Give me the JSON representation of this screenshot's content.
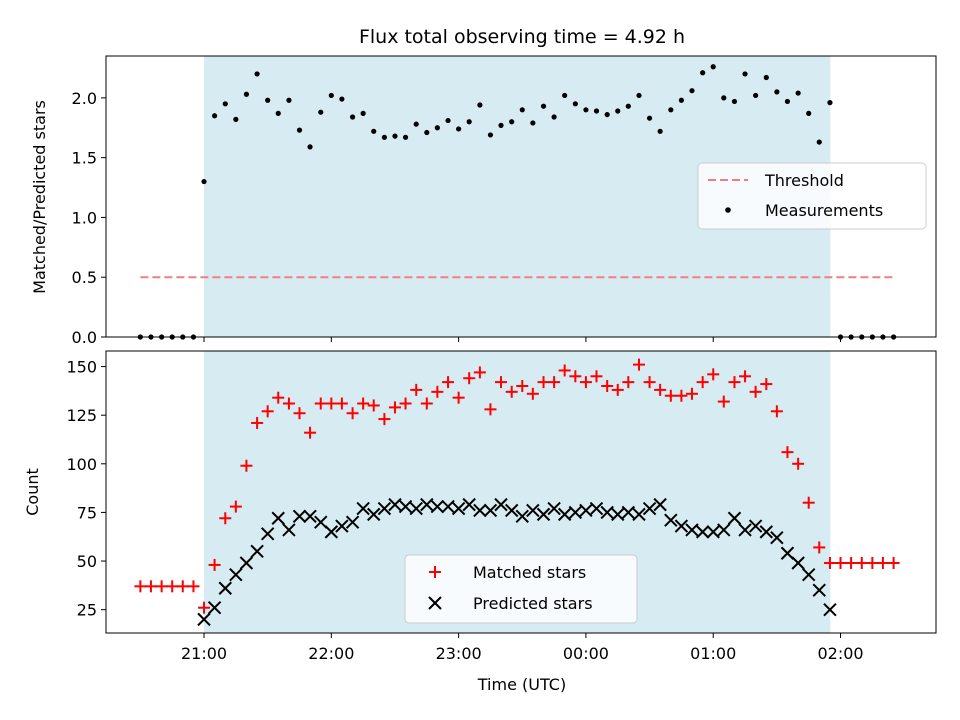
{
  "title": "Flux total observing time = 4.92 h",
  "colors": {
    "shade": "#add8e6",
    "threshold": "#f08080",
    "matched": "#ff0000",
    "predicted": "#000000",
    "measure": "#000000"
  },
  "chart_data": [
    {
      "type": "scatter",
      "ylabel": "Matched/Predicted stars",
      "ylim": [
        0,
        2.35
      ],
      "yticks": [
        "0.0",
        "0.5",
        "1.0",
        "1.5",
        "2.0"
      ],
      "ytick_values": [
        0,
        0.5,
        1.0,
        1.5,
        2.0
      ],
      "x_range_hours": [
        20.23,
        26.75
      ],
      "shaded_interval_hours": [
        21.0,
        25.92
      ],
      "legend": {
        "threshold": "Threshold",
        "measurements": "Measurements",
        "placement": "center-right"
      },
      "threshold": {
        "name": "Threshold",
        "value": 0.5,
        "x": [
          20.5,
          26.42
        ]
      },
      "measurements": {
        "name": "Measurements",
        "x": [
          20.5,
          20.583,
          20.667,
          20.75,
          20.833,
          20.917,
          21.0,
          21.083,
          21.167,
          21.25,
          21.333,
          21.417,
          21.5,
          21.583,
          21.667,
          21.75,
          21.833,
          21.917,
          22.0,
          22.083,
          22.167,
          22.25,
          22.333,
          22.417,
          22.5,
          22.583,
          22.667,
          22.75,
          22.833,
          22.917,
          23.0,
          23.083,
          23.167,
          23.25,
          23.333,
          23.417,
          23.5,
          23.583,
          23.667,
          23.75,
          23.833,
          23.917,
          24.0,
          24.083,
          24.167,
          24.25,
          24.333,
          24.417,
          24.5,
          24.583,
          24.667,
          24.75,
          24.833,
          24.917,
          25.0,
          25.083,
          25.167,
          25.25,
          25.333,
          25.417,
          25.5,
          25.583,
          25.667,
          25.75,
          25.833,
          25.917,
          26.0,
          26.083,
          26.167,
          26.25,
          26.333,
          26.417
        ],
        "y": [
          0,
          0,
          0,
          0,
          0,
          0,
          1.3,
          1.85,
          1.95,
          1.82,
          2.03,
          2.2,
          1.98,
          1.87,
          1.98,
          1.73,
          1.59,
          1.88,
          2.02,
          1.99,
          1.84,
          1.87,
          1.72,
          1.67,
          1.68,
          1.67,
          1.78,
          1.71,
          1.75,
          1.81,
          1.74,
          1.8,
          1.94,
          1.69,
          1.77,
          1.8,
          1.9,
          1.79,
          1.93,
          1.84,
          2.02,
          1.95,
          1.9,
          1.89,
          1.86,
          1.89,
          1.93,
          2.02,
          1.83,
          1.72,
          1.9,
          1.98,
          2.06,
          2.21,
          2.26,
          2.0,
          1.97,
          2.2,
          2.02,
          2.17,
          2.05,
          1.97,
          2.04,
          1.87,
          1.63,
          1.96,
          0,
          0,
          0,
          0,
          0,
          0
        ]
      }
    },
    {
      "type": "scatter",
      "ylabel": "Count",
      "xlabel": "Time (UTC)",
      "ylim": [
        13,
        158
      ],
      "yticks": [
        "25",
        "50",
        "75",
        "100",
        "125",
        "150"
      ],
      "ytick_values": [
        25,
        50,
        75,
        100,
        125,
        150
      ],
      "xticks": [
        "21:00",
        "22:00",
        "23:00",
        "00:00",
        "01:00",
        "02:00"
      ],
      "xtick_values": [
        21,
        22,
        23,
        24,
        25,
        26
      ],
      "x_range_hours": [
        20.23,
        26.75
      ],
      "shaded_interval_hours": [
        21.0,
        25.92
      ],
      "legend": {
        "matched": "Matched stars",
        "predicted": "Predicted stars",
        "placement": "lower-center"
      },
      "matched": {
        "name": "Matched stars",
        "x": [
          20.5,
          20.583,
          20.667,
          20.75,
          20.833,
          20.917,
          21.0,
          21.083,
          21.167,
          21.25,
          21.333,
          21.417,
          21.5,
          21.583,
          21.667,
          21.75,
          21.833,
          21.917,
          22.0,
          22.083,
          22.167,
          22.25,
          22.333,
          22.417,
          22.5,
          22.583,
          22.667,
          22.75,
          22.833,
          22.917,
          23.0,
          23.083,
          23.167,
          23.25,
          23.333,
          23.417,
          23.5,
          23.583,
          23.667,
          23.75,
          23.833,
          23.917,
          24.0,
          24.083,
          24.167,
          24.25,
          24.333,
          24.417,
          24.5,
          24.583,
          24.667,
          24.75,
          24.833,
          24.917,
          25.0,
          25.083,
          25.167,
          25.25,
          25.333,
          25.417,
          25.5,
          25.583,
          25.667,
          25.75,
          25.833,
          25.917,
          26.0,
          26.083,
          26.167,
          26.25,
          26.333,
          26.417
        ],
        "y": [
          37,
          37,
          37,
          37,
          37,
          37,
          26,
          48,
          72,
          78,
          99,
          121,
          127,
          134,
          131,
          126,
          116,
          131,
          131,
          131,
          126,
          131,
          130,
          123,
          129,
          131,
          138,
          131,
          137,
          142,
          134,
          144,
          147,
          128,
          142,
          137,
          140,
          136,
          142,
          142,
          148,
          145,
          142,
          145,
          140,
          138,
          142,
          151,
          142,
          138,
          135,
          135,
          136,
          142,
          146,
          132,
          142,
          145,
          137,
          141,
          127,
          106,
          100,
          80,
          57,
          49,
          49,
          49,
          49,
          49,
          49,
          49
        ]
      },
      "predicted": {
        "name": "Predicted stars",
        "x": [
          21.0,
          21.083,
          21.167,
          21.25,
          21.333,
          21.417,
          21.5,
          21.583,
          21.667,
          21.75,
          21.833,
          21.917,
          22.0,
          22.083,
          22.167,
          22.25,
          22.333,
          22.417,
          22.5,
          22.583,
          22.667,
          22.75,
          22.833,
          22.917,
          23.0,
          23.083,
          23.167,
          23.25,
          23.333,
          23.417,
          23.5,
          23.583,
          23.667,
          23.75,
          23.833,
          23.917,
          24.0,
          24.083,
          24.167,
          24.25,
          24.333,
          24.417,
          24.5,
          24.583,
          24.667,
          24.75,
          24.833,
          24.917,
          25.0,
          25.083,
          25.167,
          25.25,
          25.333,
          25.417,
          25.5,
          25.583,
          25.667,
          25.75,
          25.833,
          25.917
        ],
        "y": [
          20,
          26,
          36,
          43,
          49,
          55,
          64,
          72,
          66,
          73,
          73,
          70,
          65,
          68,
          70,
          77,
          74,
          77,
          79,
          78,
          77,
          79,
          78,
          78,
          77,
          79,
          76,
          76,
          79,
          76,
          73,
          76,
          74,
          77,
          74,
          75,
          76,
          77,
          75,
          74,
          75,
          74,
          77,
          79,
          71,
          68,
          66,
          65,
          65,
          66,
          72,
          66,
          68,
          65,
          62,
          54,
          49,
          43,
          35,
          25
        ]
      }
    }
  ]
}
